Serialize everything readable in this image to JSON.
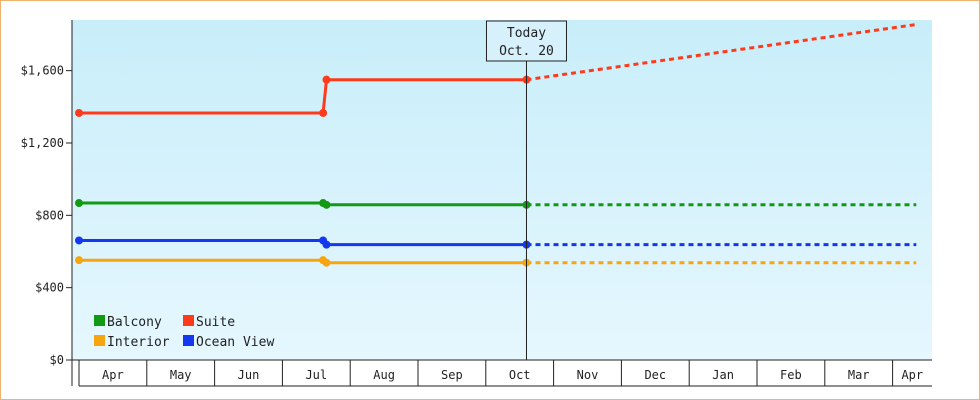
{
  "chart_data": {
    "type": "line",
    "y_ticks": [
      "$0",
      "$400",
      "$800",
      "$1,200",
      "$1,600"
    ],
    "y_tick_values": [
      0,
      400,
      800,
      1200,
      1600
    ],
    "ylim": [
      0,
      1880
    ],
    "months": [
      "Apr",
      "May",
      "Jun",
      "Jul",
      "Aug",
      "Sep",
      "Oct",
      "Nov",
      "Dec",
      "Jan",
      "Feb",
      "Mar",
      "Apr"
    ],
    "x_range_months": [
      0,
      12.35
    ],
    "grid": false,
    "legend_position": "bottom-left",
    "today": {
      "line1": "Today",
      "line2": "Oct. 20",
      "x": 6.6
    },
    "series": [
      {
        "name": "Balcony",
        "color": "#139a13",
        "actual": [
          [
            0,
            868
          ],
          [
            3.6,
            868
          ],
          [
            3.65,
            858
          ],
          [
            6.6,
            858
          ]
        ],
        "forecast": [
          [
            6.6,
            858
          ],
          [
            12.35,
            858
          ]
        ]
      },
      {
        "name": "Suite",
        "color": "#ff3a1a",
        "actual": [
          [
            0,
            1366
          ],
          [
            3.6,
            1366
          ],
          [
            3.65,
            1550
          ],
          [
            6.6,
            1550
          ]
        ],
        "forecast": [
          [
            6.6,
            1550
          ],
          [
            12.35,
            1855
          ]
        ]
      },
      {
        "name": "Interior",
        "color": "#f7a50f",
        "actual": [
          [
            0,
            552
          ],
          [
            3.6,
            552
          ],
          [
            3.65,
            538
          ],
          [
            6.6,
            538
          ]
        ],
        "forecast": [
          [
            6.6,
            538
          ],
          [
            12.35,
            538
          ]
        ]
      },
      {
        "name": "Ocean View",
        "color": "#1438f0",
        "actual": [
          [
            0,
            661
          ],
          [
            3.6,
            661
          ],
          [
            3.65,
            638
          ],
          [
            6.6,
            638
          ]
        ],
        "forecast": [
          [
            6.6,
            638
          ],
          [
            12.35,
            638
          ]
        ]
      }
    ]
  }
}
